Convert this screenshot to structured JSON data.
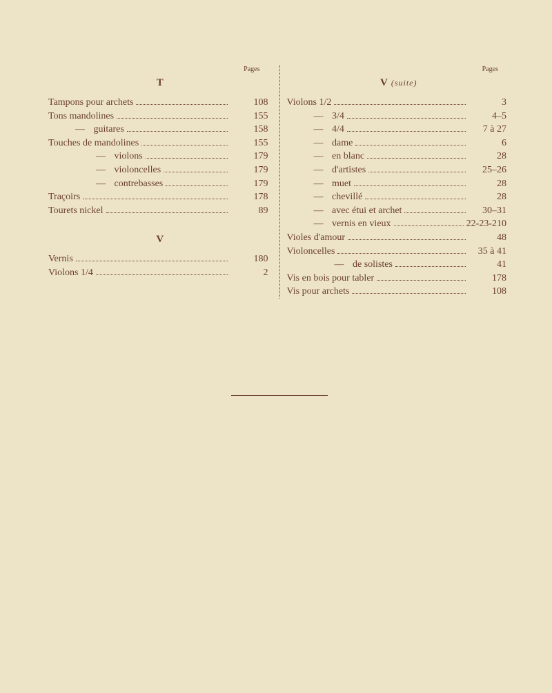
{
  "labels": {
    "pages_header": "Pages",
    "suite": "(suite)"
  },
  "left": {
    "sections": [
      {
        "letter": "T",
        "entries": [
          {
            "label": "Tampons pour archets",
            "page": "108",
            "indent": 0,
            "ditto": false
          },
          {
            "label": "Tons mandolines",
            "page": "155",
            "indent": 0,
            "ditto": false
          },
          {
            "label": "guitares",
            "page": "158",
            "indent": 1,
            "ditto": true
          },
          {
            "label": "Touches de mandolines",
            "page": "155",
            "indent": 0,
            "ditto": false
          },
          {
            "label": "violons",
            "page": "179",
            "indent": 2,
            "ditto": true
          },
          {
            "label": "violoncelles",
            "page": "179",
            "indent": 2,
            "ditto": true
          },
          {
            "label": "contrebasses",
            "page": "179",
            "indent": 2,
            "ditto": true
          },
          {
            "label": "Traçoirs",
            "page": "178",
            "indent": 0,
            "ditto": false
          },
          {
            "label": "Tourets nickel",
            "page": "89",
            "indent": 0,
            "ditto": false
          }
        ]
      },
      {
        "letter": "V",
        "entries": [
          {
            "label": "Vernis",
            "page": "180",
            "indent": 0,
            "ditto": false
          },
          {
            "label": "Violons 1/4",
            "page": "2",
            "indent": 0,
            "ditto": false
          }
        ]
      }
    ]
  },
  "right": {
    "sections": [
      {
        "letter": "V",
        "suite": true,
        "entries": [
          {
            "label": "Violons 1/2",
            "page": "3",
            "indent": 0,
            "ditto": false
          },
          {
            "label": "3/4",
            "page": "4–5",
            "indent": 1,
            "ditto": true
          },
          {
            "label": "4/4",
            "page": "7 à 27",
            "indent": 1,
            "ditto": true
          },
          {
            "label": "dame",
            "page": "6",
            "indent": 1,
            "ditto": true
          },
          {
            "label": "en blanc",
            "page": "28",
            "indent": 1,
            "ditto": true
          },
          {
            "label": "d'artistes",
            "page": "25–26",
            "indent": 1,
            "ditto": true
          },
          {
            "label": "muet",
            "page": "28",
            "indent": 1,
            "ditto": true
          },
          {
            "label": "chevillé",
            "page": "28",
            "indent": 1,
            "ditto": true
          },
          {
            "label": "avec étui et archet",
            "page": "30–31",
            "indent": 1,
            "ditto": true
          },
          {
            "label": "vernis en vieux",
            "page": "22-23-210",
            "indent": 1,
            "ditto": true
          },
          {
            "label": "Violes d'amour",
            "page": "48",
            "indent": 0,
            "ditto": false
          },
          {
            "label": "Violoncelles",
            "page": "35 à 41",
            "indent": 0,
            "ditto": false
          },
          {
            "label": "de solistes",
            "page": "41",
            "indent": 2,
            "ditto": true
          },
          {
            "label": "Vis en bois pour tabler",
            "page": "178",
            "indent": 0,
            "ditto": false
          },
          {
            "label": "Vis pour archets",
            "page": "108",
            "indent": 0,
            "ditto": false
          }
        ]
      }
    ]
  }
}
